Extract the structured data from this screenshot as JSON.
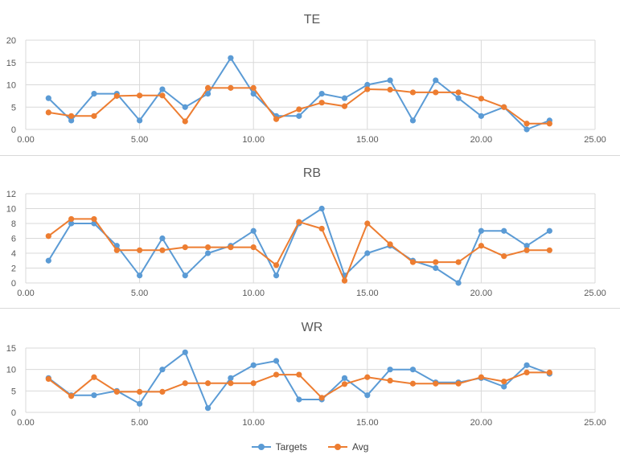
{
  "chart_data": [
    {
      "type": "line",
      "title": "TE",
      "xlabel": "",
      "ylabel": "",
      "xlim": [
        0,
        25
      ],
      "ylim": [
        0,
        20
      ],
      "x_ticks": [
        "0.00",
        "5.00",
        "10.00",
        "15.00",
        "20.00",
        "25.00"
      ],
      "y_ticks": [
        "0",
        "5",
        "10",
        "15",
        "20"
      ],
      "grid": true,
      "x": [
        1,
        2,
        3,
        4,
        5,
        6,
        7,
        8,
        9,
        10,
        11,
        12,
        13,
        14,
        15,
        16,
        17,
        18,
        19,
        20,
        21,
        22,
        23
      ],
      "series": [
        {
          "name": "Targets",
          "values": [
            7,
            2,
            8,
            8,
            2,
            9,
            5,
            8,
            16,
            8,
            3,
            3,
            8,
            7,
            10,
            11,
            2,
            11,
            7,
            3,
            5,
            0,
            2
          ]
        },
        {
          "name": "Avg",
          "values": [
            3.8,
            3,
            3,
            7.5,
            7.6,
            7.6,
            1.8,
            9.3,
            9.3,
            9.3,
            2.3,
            4.5,
            6,
            5.2,
            9,
            8.9,
            8.3,
            8.3,
            8.3,
            6.9,
            5,
            1.3,
            1.3
          ]
        }
      ]
    },
    {
      "type": "line",
      "title": "RB",
      "xlabel": "",
      "ylabel": "",
      "xlim": [
        0,
        25
      ],
      "ylim": [
        0,
        12
      ],
      "x_ticks": [
        "0.00",
        "5.00",
        "10.00",
        "15.00",
        "20.00",
        "25.00"
      ],
      "y_ticks": [
        "0",
        "2",
        "4",
        "6",
        "8",
        "10",
        "12"
      ],
      "grid": true,
      "x": [
        1,
        2,
        3,
        4,
        5,
        6,
        7,
        8,
        9,
        10,
        11,
        12,
        13,
        14,
        15,
        16,
        17,
        18,
        19,
        20,
        21,
        22,
        23
      ],
      "series": [
        {
          "name": "Targets",
          "values": [
            3,
            8,
            8,
            5,
            1,
            6,
            1,
            4,
            5,
            7,
            1,
            8,
            10,
            1,
            4,
            5,
            3,
            2,
            0,
            7,
            7,
            5,
            7
          ]
        },
        {
          "name": "Avg",
          "values": [
            6.3,
            8.6,
            8.6,
            4.4,
            4.4,
            4.4,
            4.8,
            4.8,
            4.8,
            4.8,
            2.4,
            8.2,
            7.3,
            0.3,
            8,
            5.2,
            2.8,
            2.8,
            2.8,
            5,
            3.6,
            4.4,
            4.4
          ]
        }
      ]
    },
    {
      "type": "line",
      "title": "WR",
      "xlabel": "",
      "ylabel": "",
      "xlim": [
        0,
        25
      ],
      "ylim": [
        0,
        15
      ],
      "x_ticks": [
        "0.00",
        "5.00",
        "10.00",
        "15.00",
        "20.00",
        "25.00"
      ],
      "y_ticks": [
        "0",
        "5",
        "10",
        "15"
      ],
      "grid": true,
      "x": [
        1,
        2,
        3,
        4,
        5,
        6,
        7,
        8,
        9,
        10,
        11,
        12,
        13,
        14,
        15,
        16,
        17,
        18,
        19,
        20,
        21,
        22,
        23
      ],
      "series": [
        {
          "name": "Targets",
          "values": [
            8,
            4,
            4,
            5,
            2,
            10,
            14,
            1,
            8,
            11,
            12,
            3,
            3,
            8,
            4,
            10,
            10,
            7,
            7,
            8,
            6,
            11,
            9
          ]
        },
        {
          "name": "Avg",
          "values": [
            7.8,
            3.8,
            8.2,
            4.8,
            4.8,
            4.8,
            6.8,
            6.8,
            6.8,
            6.8,
            8.8,
            8.8,
            3.4,
            6.6,
            8.2,
            7.4,
            6.7,
            6.7,
            6.7,
            8.2,
            7.2,
            9.3,
            9.3
          ]
        }
      ]
    }
  ],
  "legend": {
    "position": "bottom",
    "items": [
      {
        "label": "Targets",
        "color": "#5B9BD5"
      },
      {
        "label": "Avg",
        "color": "#ED7D31"
      }
    ]
  },
  "colors": {
    "gridline": "#d9d9d9",
    "axis_text": "#595959",
    "title_text": "#595959"
  }
}
